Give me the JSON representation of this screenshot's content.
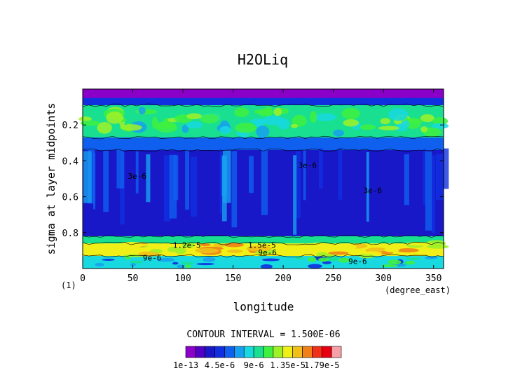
{
  "chart_data": {
    "type": "heatmap",
    "title": "H2OLiq",
    "xlabel": "longitude",
    "ylabel": "sigma at layer midpoints",
    "x_units": "(degree_east)",
    "corner_label": "(1)",
    "xlim": [
      0,
      360
    ],
    "ylim": [
      1.0,
      0.0
    ],
    "x_ticks": [
      "0",
      "50",
      "100",
      "150",
      "200",
      "250",
      "300",
      "350"
    ],
    "y_ticks": [
      "0.2",
      "0.4",
      "0.6",
      "0.8"
    ],
    "contour_interval_text": "CONTOUR INTERVAL = 1.500E-06",
    "colorbar": {
      "labels": [
        "1e-13",
        "4.5e-6",
        "9e-6",
        "1.35e-5",
        "1.79e-5"
      ],
      "colors": [
        "#8a00c8",
        "#5000c0",
        "#1818c8",
        "#1030e0",
        "#1060f0",
        "#18a0f0",
        "#18d8e0",
        "#18e090",
        "#40f040",
        "#a0f028",
        "#f0f018",
        "#f0c018",
        "#f08018",
        "#f03018",
        "#e80010",
        "#f8a0a8"
      ]
    },
    "contour_labels": [
      "3e-6",
      "9e-6",
      "1.2e-5",
      "1.5e-5"
    ],
    "bands": [
      {
        "sigma": [
          0.0,
          0.05
        ],
        "level": 0
      },
      {
        "sigma": [
          0.05,
          0.09
        ],
        "level": 3
      },
      {
        "sigma": [
          0.09,
          0.27
        ],
        "level": 7
      },
      {
        "sigma": [
          0.27,
          0.34
        ],
        "level": 4
      },
      {
        "sigma": [
          0.34,
          0.82
        ],
        "level": 2
      },
      {
        "sigma": [
          0.82,
          0.86
        ],
        "level": 7
      },
      {
        "sigma": [
          0.86,
          0.93
        ],
        "level": 10
      },
      {
        "sigma": [
          0.93,
          1.0
        ],
        "level": 6
      }
    ]
  }
}
